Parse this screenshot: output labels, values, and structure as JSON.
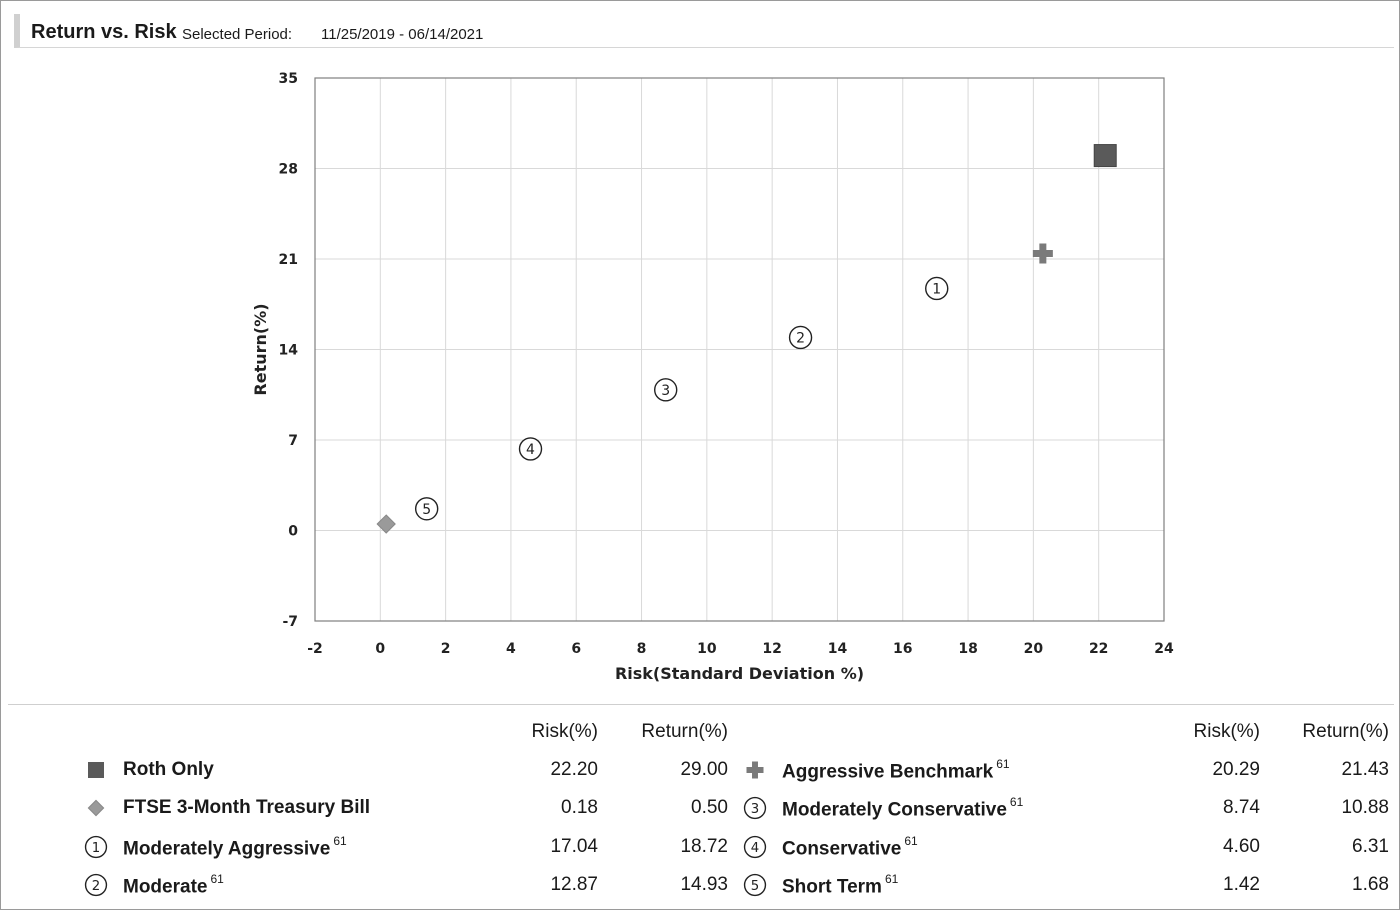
{
  "header": {
    "title": "Return vs. Risk",
    "period_label": "Selected Period:",
    "period_value": "11/25/2019 - 06/14/2021"
  },
  "chart_data": {
    "type": "scatter",
    "xlabel": "Risk(Standard Deviation %)",
    "ylabel": "Return(%)",
    "xlim": [
      -2,
      24
    ],
    "ylim": [
      -7,
      35
    ],
    "x_ticks": [
      -2,
      0,
      2,
      4,
      6,
      8,
      10,
      12,
      14,
      16,
      18,
      20,
      22,
      24
    ],
    "y_ticks": [
      -7,
      0,
      7,
      14,
      21,
      28,
      35
    ],
    "grid": true,
    "points": [
      {
        "name": "Roth Only",
        "marker": "square",
        "x": 22.2,
        "y": 29.0
      },
      {
        "name": "FTSE 3-Month Treasury Bill",
        "marker": "diamond",
        "x": 0.18,
        "y": 0.5
      },
      {
        "name": "Moderately Aggressive",
        "marker": "circle-1",
        "label": "1",
        "x": 17.04,
        "y": 18.72
      },
      {
        "name": "Moderate",
        "marker": "circle-2",
        "label": "2",
        "x": 12.87,
        "y": 14.93
      },
      {
        "name": "Aggressive Benchmark",
        "marker": "plus",
        "x": 20.29,
        "y": 21.43
      },
      {
        "name": "Moderately Conservative",
        "marker": "circle-3",
        "label": "3",
        "x": 8.74,
        "y": 10.88
      },
      {
        "name": "Conservative",
        "marker": "circle-4",
        "label": "4",
        "x": 4.6,
        "y": 6.31
      },
      {
        "name": "Short Term",
        "marker": "circle-5",
        "label": "5",
        "x": 1.42,
        "y": 1.68
      }
    ],
    "colors": {
      "square": "#5a5a5a",
      "diamond": "#9a9a9a",
      "plus": "#7a7a7a",
      "grid": "#d9d9d9",
      "axis": "#7f7f7f"
    }
  },
  "legend": {
    "risk_header": "Risk(%)",
    "return_header": "Return(%)",
    "left": [
      {
        "icon": "square",
        "name": "Roth Only",
        "sup": "",
        "risk": "22.20",
        "ret": "29.00"
      },
      {
        "icon": "diamond",
        "name": "FTSE 3-Month Treasury Bill",
        "sup": "",
        "risk": "0.18",
        "ret": "0.50"
      },
      {
        "icon": "circle",
        "num": "1",
        "name": "Moderately Aggressive",
        "sup": "61",
        "risk": "17.04",
        "ret": "18.72"
      },
      {
        "icon": "circle",
        "num": "2",
        "name": "Moderate",
        "sup": "61",
        "risk": "12.87",
        "ret": "14.93"
      }
    ],
    "right": [
      {
        "icon": "plus",
        "name": "Aggressive Benchmark",
        "sup": "61",
        "risk": "20.29",
        "ret": "21.43"
      },
      {
        "icon": "circle",
        "num": "3",
        "name": "Moderately Conservative",
        "sup": "61",
        "risk": "8.74",
        "ret": "10.88"
      },
      {
        "icon": "circle",
        "num": "4",
        "name": "Conservative",
        "sup": "61",
        "risk": "4.60",
        "ret": "6.31"
      },
      {
        "icon": "circle",
        "num": "5",
        "name": "Short Term",
        "sup": "61",
        "risk": "1.42",
        "ret": "1.68"
      }
    ]
  }
}
